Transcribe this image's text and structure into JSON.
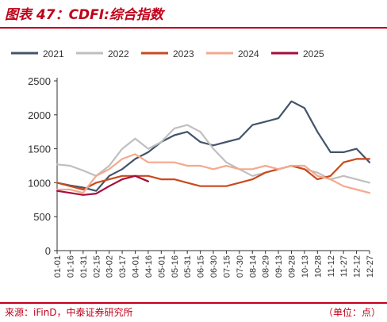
{
  "title": "图表 47：CDFI:综合指数",
  "source": "来源：iFinD，中泰证券研究所",
  "unit": "（单位：点）",
  "chart_data": {
    "type": "line",
    "title": "CDFI:综合指数",
    "xlabel": "",
    "ylabel": "",
    "ylim": [
      0,
      2500
    ],
    "yticks": [
      "0",
      "500",
      "1000",
      "1500",
      "2000",
      "2500"
    ],
    "x_tick_labels": [
      "01-01",
      "01-16",
      "01-31",
      "02-15",
      "03-02",
      "03-17",
      "04-01",
      "04-16",
      "05-01",
      "05-16",
      "05-31",
      "06-15",
      "06-30",
      "07-15",
      "07-30",
      "08-14",
      "08-29",
      "09-13",
      "09-28",
      "10-13",
      "10-28",
      "11-12",
      "11-27",
      "12-12",
      "12-27"
    ],
    "grid": false,
    "legend_position": "top",
    "series": [
      {
        "name": "2021",
        "color": "#44546a",
        "values": [
          1000,
          960,
          930,
          880,
          1100,
          1200,
          1350,
          1450,
          1600,
          1700,
          1750,
          1600,
          1550,
          1600,
          1650,
          1850,
          1900,
          1950,
          2200,
          2100,
          1750,
          1450,
          1450,
          1500,
          1300
        ]
      },
      {
        "name": "2022",
        "color": "#bfbfbf",
        "values": [
          1270,
          1250,
          1180,
          1100,
          1250,
          1500,
          1650,
          1500,
          1600,
          1800,
          1850,
          1750,
          1500,
          1300,
          1200,
          1100,
          1150,
          1200,
          1250,
          1200,
          1150,
          1050,
          1100,
          1050,
          1000
        ]
      },
      {
        "name": "2023",
        "color": "#c84a1c",
        "values": [
          1000,
          950,
          900,
          1000,
          1050,
          1100,
          1100,
          1100,
          1050,
          1050,
          1000,
          950,
          950,
          950,
          1000,
          1050,
          1150,
          1200,
          1250,
          1200,
          1050,
          1100,
          1300,
          1350,
          1350
        ]
      },
      {
        "name": "2024",
        "color": "#f4a98e",
        "values": [
          900,
          900,
          850,
          1100,
          1200,
          1350,
          1420,
          1300,
          1300,
          1300,
          1250,
          1250,
          1200,
          1250,
          1200,
          1200,
          1250,
          1200,
          1250,
          1250,
          1100,
          1050,
          950,
          900,
          850
        ]
      },
      {
        "name": "2025",
        "color": "#a50d3c",
        "values": [
          880,
          850,
          820,
          840,
          950,
          1050,
          1100,
          1020,
          null,
          null,
          null,
          null,
          null,
          null,
          null,
          null,
          null,
          null,
          null,
          null,
          null,
          null,
          null,
          null,
          null
        ]
      }
    ]
  }
}
